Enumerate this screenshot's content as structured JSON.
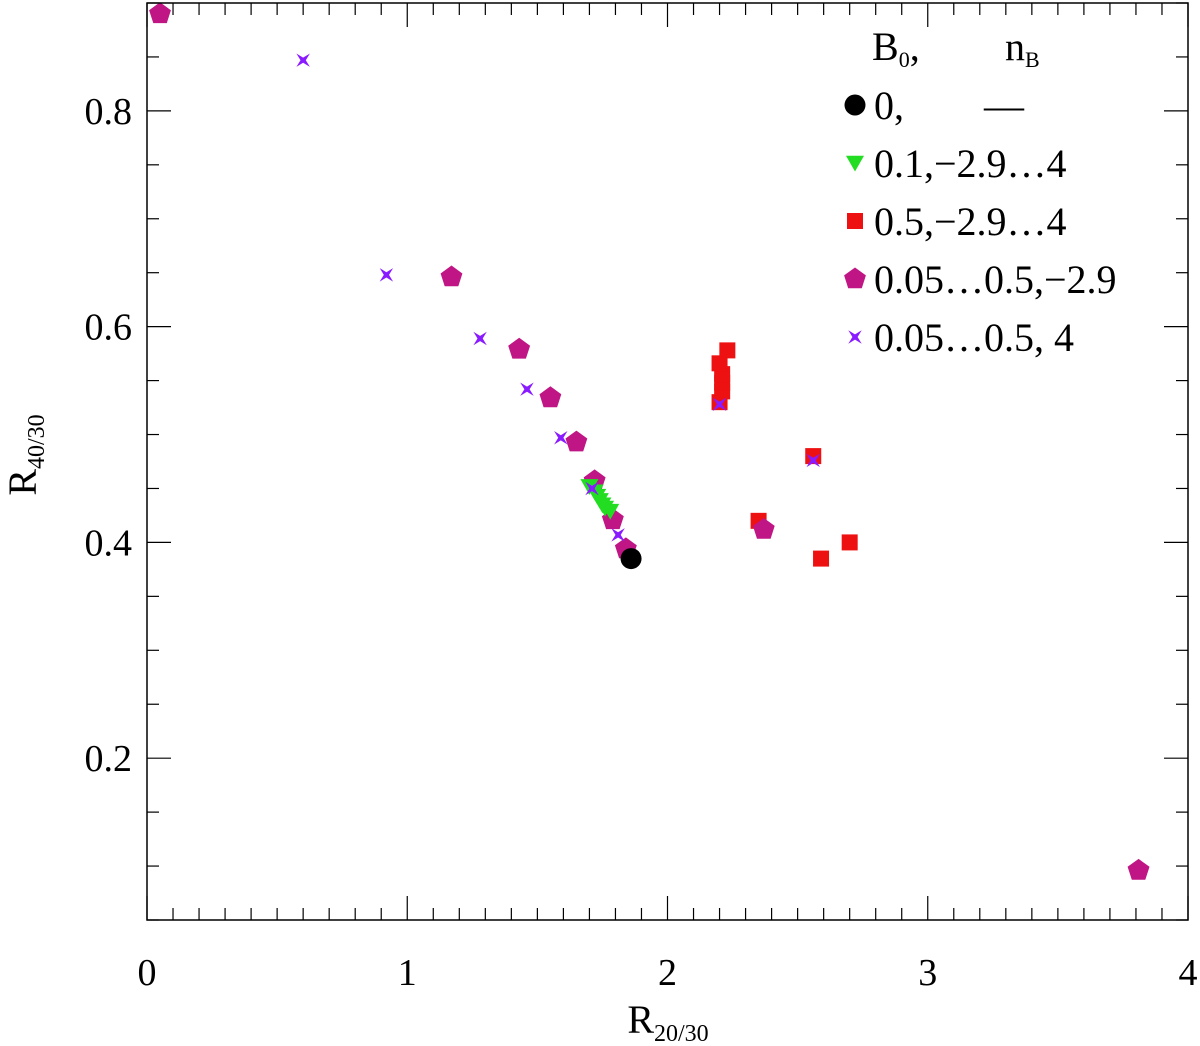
{
  "chart_data": {
    "type": "scatter",
    "xlabel": "R",
    "xlabel_sub": "20/30",
    "ylabel": "R",
    "ylabel_sub": "40/30",
    "xlim": [
      0,
      4
    ],
    "ylim": [
      0.05,
      0.9
    ],
    "x_ticks": [
      {
        "value": 0,
        "label": "0"
      },
      {
        "value": 1,
        "label": "1"
      },
      {
        "value": 2,
        "label": "2"
      },
      {
        "value": 3,
        "label": "3"
      },
      {
        "value": 4,
        "label": "4"
      }
    ],
    "y_ticks": [
      {
        "value": 0.2,
        "label": "0.2"
      },
      {
        "value": 0.4,
        "label": "0.4"
      },
      {
        "value": 0.6,
        "label": "0.6"
      },
      {
        "value": 0.8,
        "label": "0.8"
      }
    ],
    "grid": false,
    "legend_position": "top-right",
    "legend_header": {
      "col1": "B",
      "col1_sub": "0",
      "col1_suffix": ",",
      "col2": "n",
      "col2_sub": "B"
    },
    "series": [
      {
        "name": "0,        —",
        "marker": "circle",
        "color": "#000000",
        "points": [
          [
            1.86,
            0.385
          ]
        ]
      },
      {
        "name": "0.1,−2.9…4",
        "marker": "triangle-down",
        "color": "#22dd22",
        "points": [
          [
            1.7,
            0.452
          ],
          [
            1.72,
            0.447
          ],
          [
            1.73,
            0.443
          ],
          [
            1.74,
            0.439
          ],
          [
            1.75,
            0.435
          ],
          [
            1.76,
            0.432
          ],
          [
            1.78,
            0.429
          ]
        ]
      },
      {
        "name": "0.5,−2.9…4",
        "marker": "square",
        "color": "#ee1111",
        "points": [
          [
            2.2,
            0.53
          ],
          [
            2.21,
            0.54
          ],
          [
            2.21,
            0.548
          ],
          [
            2.21,
            0.556
          ],
          [
            2.2,
            0.566
          ],
          [
            2.23,
            0.578
          ],
          [
            2.56,
            0.48
          ],
          [
            2.35,
            0.42
          ],
          [
            2.59,
            0.385
          ],
          [
            2.7,
            0.4
          ]
        ]
      },
      {
        "name": "0.05…0.5,−2.9",
        "marker": "pentagon",
        "color": "#c01584",
        "points": [
          [
            0.05,
            0.89
          ],
          [
            1.17,
            0.646
          ],
          [
            1.43,
            0.579
          ],
          [
            1.55,
            0.534
          ],
          [
            1.65,
            0.493
          ],
          [
            1.72,
            0.457
          ],
          [
            1.79,
            0.421
          ],
          [
            1.84,
            0.394
          ],
          [
            2.37,
            0.412
          ],
          [
            3.81,
            0.096
          ]
        ]
      },
      {
        "name": "0.05…0.5, 4",
        "marker": "star",
        "color": "#8a1aff",
        "points": [
          [
            0.6,
            0.847
          ],
          [
            0.92,
            0.648
          ],
          [
            1.28,
            0.589
          ],
          [
            1.46,
            0.542
          ],
          [
            1.59,
            0.497
          ],
          [
            1.71,
            0.45
          ],
          [
            1.81,
            0.407
          ],
          [
            2.2,
            0.528
          ],
          [
            2.56,
            0.476
          ]
        ]
      }
    ]
  }
}
